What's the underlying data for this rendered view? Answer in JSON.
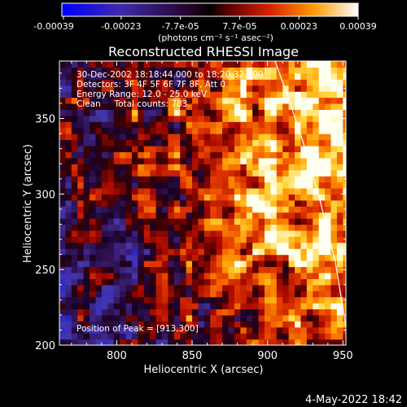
{
  "chart_data": {
    "type": "heatmap",
    "title": "Reconstructed RHESSI Image",
    "xlabel": "Heliocentric X (arcsec)",
    "ylabel": "Heliocentric Y (arcsec)",
    "xlim": [
      762,
      952
    ],
    "ylim": [
      200,
      388
    ],
    "x_ticks": [
      800,
      850,
      900,
      950
    ],
    "y_ticks": [
      200,
      250,
      300,
      350
    ],
    "colorbar": {
      "tick_labels": [
        "-0.00039",
        "-0.00023",
        "-7.7e-05",
        "7.7e-05",
        "0.00023",
        "0.00039"
      ],
      "unit_label": "(photons cm⁻² s⁻¹ asec⁻²)",
      "range": [
        -0.00039,
        0.00039
      ]
    },
    "annotations": [
      "30-Dec-2002 18:18:44.000 to 18:20:32.000",
      "Detectors: 3F 4F 5F 6F 7F 8F, Att 0",
      "Energy Range: 12.0 - 25.0 keV",
      "Clean     Total counts: 783."
    ],
    "peak_label": "Position of Peak = [913,300]",
    "peak": [
      913,
      300
    ],
    "limb_curve": {
      "x": [
        905,
        915,
        925,
        935,
        945,
        952
      ],
      "y": [
        388,
        360,
        330,
        295,
        255,
        212
      ]
    }
  },
  "footer": {
    "date": "4-May-2022 18:42"
  }
}
